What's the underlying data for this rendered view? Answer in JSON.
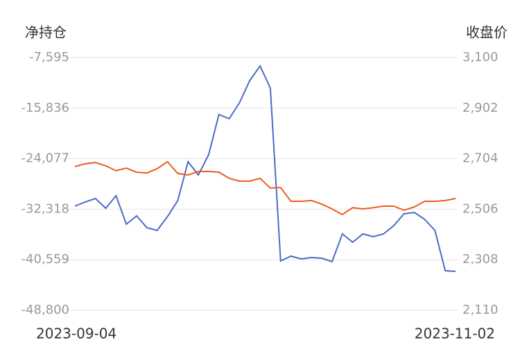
{
  "chart_data": {
    "type": "line",
    "y_label": "净持仓",
    "y2_label": "收盘价",
    "categories": [
      "2023-09-04",
      null,
      null,
      null,
      null,
      null,
      null,
      null,
      null,
      null,
      null,
      null,
      null,
      null,
      null,
      null,
      null,
      null,
      null,
      null,
      null,
      null,
      null,
      null,
      null,
      null,
      null,
      null,
      null,
      null,
      null,
      null,
      null,
      null,
      null,
      null,
      null,
      "2023-11-02"
    ],
    "series": [
      {
        "name": "净持仓",
        "color": "#4a6cc4",
        "values": [
          -31820,
          -31141,
          -30575,
          -32159,
          -30122,
          -34763,
          -33405,
          -35329,
          -35782,
          -33518,
          -30914,
          -24575,
          -26726,
          -23443,
          -16877,
          -17557,
          -14953,
          -11331,
          -8953,
          -12576,
          -40763,
          -39970,
          -40423,
          -40197,
          -40310,
          -40876,
          -36348,
          -37706,
          -36348,
          -36801,
          -36348,
          -34989,
          -33065,
          -32839,
          -33971,
          -35782,
          -42347,
          -42461
        ]
      },
      {
        "name": "收盘价",
        "color": "#f05a1e",
        "axis": "y2",
        "values": [
          2673,
          2684,
          2689,
          2676,
          2657,
          2667,
          2651,
          2648,
          2665,
          2692,
          2646,
          2640,
          2654,
          2654,
          2651,
          2627,
          2616,
          2616,
          2627,
          2589,
          2591,
          2537,
          2537,
          2540,
          2526,
          2507,
          2485,
          2512,
          2507,
          2512,
          2518,
          2518,
          2502,
          2515,
          2537,
          2537,
          2540,
          2548
        ]
      }
    ],
    "ylim": [
      -48800,
      -7595
    ],
    "yticks": [
      {
        "value": -7595,
        "label": "-7,595"
      },
      {
        "value": -15836,
        "label": "-15,836"
      },
      {
        "value": -24077,
        "label": "-24,077"
      },
      {
        "value": -32318,
        "label": "-32,318"
      },
      {
        "value": -40559,
        "label": "-40,559"
      },
      {
        "value": -48800,
        "label": "-48,800"
      }
    ],
    "y2lim": [
      2110,
      3100
    ],
    "y2ticks": [
      {
        "value": 3100,
        "label": "3,100"
      },
      {
        "value": 2902,
        "label": "2,902"
      },
      {
        "value": 2704,
        "label": "2,704"
      },
      {
        "value": 2506,
        "label": "2,506"
      },
      {
        "value": 2308,
        "label": "2,308"
      },
      {
        "value": 2110,
        "label": "2,110"
      }
    ],
    "grid": true
  }
}
